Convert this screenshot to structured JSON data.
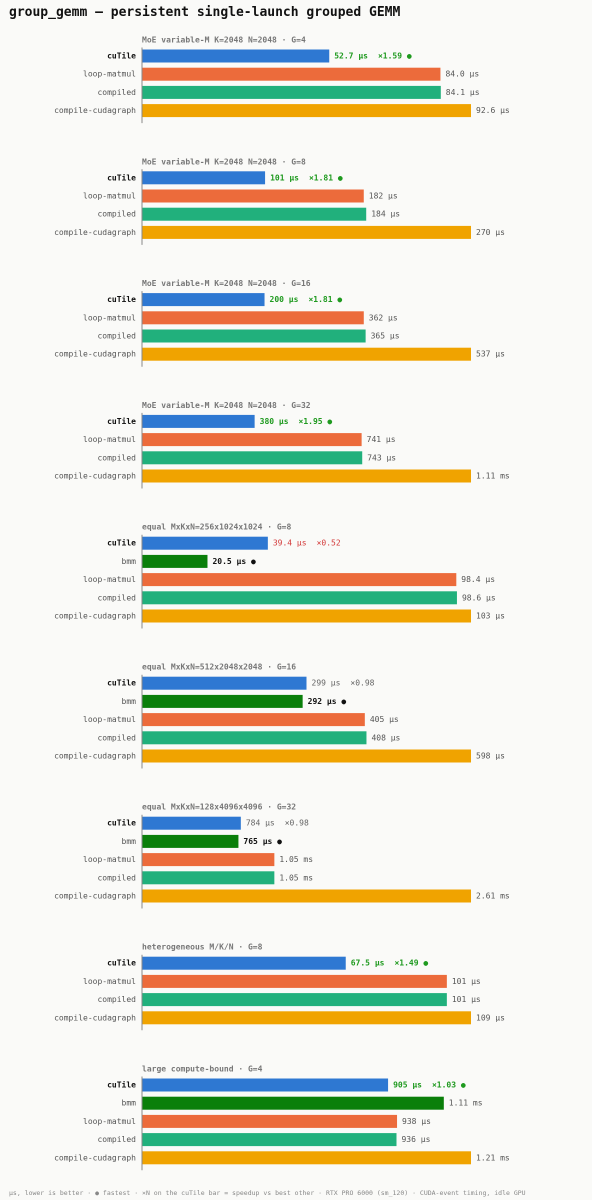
{
  "title": "group_gemm — persistent single-launch grouped GEMM",
  "footnote": "µs, lower is better · ● fastest · ×N on the cuTile bar = speedup vs best other · RTX PRO 6000 (sm_120) · CUDA-event timing, idle GPU",
  "chart_data": [
    {
      "type": "bar",
      "orientation": "horizontal",
      "title": "MoE variable-M  K=2048 N=2048 · G=4",
      "categories": [
        "cuTile",
        "loop-matmul",
        "compiled",
        "compile-cudagraph"
      ],
      "values": [
        52.7,
        84.0,
        84.1,
        92.6
      ],
      "value_labels": [
        "52.7 µs",
        "84.0 µs",
        "84.1 µs",
        "92.6 µs"
      ],
      "colors": [
        "#2e78d2",
        "#ec6b3b",
        "#21b07c",
        "#f0a300"
      ],
      "value_label_colors": [
        "#1f9a1f",
        "#555555",
        "#555555",
        "#555555"
      ],
      "value_label_bold": [
        true,
        false,
        false,
        false
      ],
      "speedup": {
        "label": "×1.59 ●",
        "color": "#1f9a1f"
      }
    },
    {
      "type": "bar",
      "orientation": "horizontal",
      "title": "MoE variable-M  K=2048 N=2048 · G=8",
      "categories": [
        "cuTile",
        "loop-matmul",
        "compiled",
        "compile-cudagraph"
      ],
      "values": [
        101,
        182,
        184,
        270
      ],
      "value_labels": [
        "101 µs",
        "182 µs",
        "184 µs",
        "270 µs"
      ],
      "colors": [
        "#2e78d2",
        "#ec6b3b",
        "#21b07c",
        "#f0a300"
      ],
      "value_label_colors": [
        "#1f9a1f",
        "#555555",
        "#555555",
        "#555555"
      ],
      "value_label_bold": [
        true,
        false,
        false,
        false
      ],
      "speedup": {
        "label": "×1.81 ●",
        "color": "#1f9a1f"
      }
    },
    {
      "type": "bar",
      "orientation": "horizontal",
      "title": "MoE variable-M  K=2048 N=2048 · G=16",
      "categories": [
        "cuTile",
        "loop-matmul",
        "compiled",
        "compile-cudagraph"
      ],
      "values": [
        200,
        362,
        365,
        537
      ],
      "value_labels": [
        "200 µs",
        "362 µs",
        "365 µs",
        "537 µs"
      ],
      "colors": [
        "#2e78d2",
        "#ec6b3b",
        "#21b07c",
        "#f0a300"
      ],
      "value_label_colors": [
        "#1f9a1f",
        "#555555",
        "#555555",
        "#555555"
      ],
      "value_label_bold": [
        true,
        false,
        false,
        false
      ],
      "speedup": {
        "label": "×1.81 ●",
        "color": "#1f9a1f"
      }
    },
    {
      "type": "bar",
      "orientation": "horizontal",
      "title": "MoE variable-M  K=2048 N=2048 · G=32",
      "categories": [
        "cuTile",
        "loop-matmul",
        "compiled",
        "compile-cudagraph"
      ],
      "values": [
        380,
        741,
        743,
        1110
      ],
      "value_labels": [
        "380 µs",
        "741 µs",
        "743 µs",
        "1.11 ms"
      ],
      "colors": [
        "#2e78d2",
        "#ec6b3b",
        "#21b07c",
        "#f0a300"
      ],
      "value_label_colors": [
        "#1f9a1f",
        "#555555",
        "#555555",
        "#555555"
      ],
      "value_label_bold": [
        true,
        false,
        false,
        false
      ],
      "speedup": {
        "label": "×1.95 ●",
        "color": "#1f9a1f"
      }
    },
    {
      "type": "bar",
      "orientation": "horizontal",
      "title": "equal MxKxN=256x1024x1024 · G=8",
      "categories": [
        "cuTile",
        "bmm",
        "loop-matmul",
        "compiled",
        "compile-cudagraph"
      ],
      "values": [
        39.4,
        20.5,
        98.4,
        98.6,
        103
      ],
      "value_labels": [
        "39.4 µs",
        "20.5 µs ●",
        "98.4 µs",
        "98.6 µs",
        "103 µs"
      ],
      "colors": [
        "#2e78d2",
        "#0a7f0a",
        "#ec6b3b",
        "#21b07c",
        "#f0a300"
      ],
      "value_label_colors": [
        "#d33a3a",
        "#111111",
        "#555555",
        "#555555",
        "#555555"
      ],
      "value_label_bold": [
        false,
        true,
        false,
        false,
        false
      ],
      "speedup": {
        "label": "×0.52",
        "color": "#d33a3a"
      }
    },
    {
      "type": "bar",
      "orientation": "horizontal",
      "title": "equal MxKxN=512x2048x2048 · G=16",
      "categories": [
        "cuTile",
        "bmm",
        "loop-matmul",
        "compiled",
        "compile-cudagraph"
      ],
      "values": [
        299,
        292,
        405,
        408,
        598
      ],
      "value_labels": [
        "299 µs",
        "292 µs ●",
        "405 µs",
        "408 µs",
        "598 µs"
      ],
      "colors": [
        "#2e78d2",
        "#0a7f0a",
        "#ec6b3b",
        "#21b07c",
        "#f0a300"
      ],
      "value_label_colors": [
        "#666666",
        "#111111",
        "#555555",
        "#555555",
        "#555555"
      ],
      "value_label_bold": [
        false,
        true,
        false,
        false,
        false
      ],
      "speedup": {
        "label": "×0.98",
        "color": "#666666"
      }
    },
    {
      "type": "bar",
      "orientation": "horizontal",
      "title": "equal MxKxN=128x4096x4096 · G=32",
      "categories": [
        "cuTile",
        "bmm",
        "loop-matmul",
        "compiled",
        "compile-cudagraph"
      ],
      "values": [
        784,
        765,
        1050,
        1050,
        2610
      ],
      "value_labels": [
        "784 µs",
        "765 µs ●",
        "1.05 ms",
        "1.05 ms",
        "2.61 ms"
      ],
      "colors": [
        "#2e78d2",
        "#0a7f0a",
        "#ec6b3b",
        "#21b07c",
        "#f0a300"
      ],
      "value_label_colors": [
        "#666666",
        "#111111",
        "#555555",
        "#555555",
        "#555555"
      ],
      "value_label_bold": [
        false,
        true,
        false,
        false,
        false
      ],
      "speedup": {
        "label": "×0.98",
        "color": "#666666"
      }
    },
    {
      "type": "bar",
      "orientation": "horizontal",
      "title": "heterogeneous M/K/N · G=8",
      "categories": [
        "cuTile",
        "loop-matmul",
        "compiled",
        "compile-cudagraph"
      ],
      "values": [
        67.5,
        101,
        101,
        109
      ],
      "value_labels": [
        "67.5 µs",
        "101 µs",
        "101 µs",
        "109 µs"
      ],
      "colors": [
        "#2e78d2",
        "#ec6b3b",
        "#21b07c",
        "#f0a300"
      ],
      "value_label_colors": [
        "#1f9a1f",
        "#555555",
        "#555555",
        "#555555"
      ],
      "value_label_bold": [
        true,
        false,
        false,
        false
      ],
      "speedup": {
        "label": "×1.49 ●",
        "color": "#1f9a1f"
      }
    },
    {
      "type": "bar",
      "orientation": "horizontal",
      "title": "large compute-bound · G=4",
      "categories": [
        "cuTile",
        "bmm",
        "loop-matmul",
        "compiled",
        "compile-cudagraph"
      ],
      "values": [
        905,
        1110,
        938,
        936,
        1210
      ],
      "value_labels": [
        "905 µs",
        "1.11 ms",
        "938 µs",
        "936 µs",
        "1.21 ms"
      ],
      "colors": [
        "#2e78d2",
        "#0a7f0a",
        "#ec6b3b",
        "#21b07c",
        "#f0a300"
      ],
      "value_label_colors": [
        "#1f9a1f",
        "#555555",
        "#555555",
        "#555555",
        "#555555"
      ],
      "value_label_bold": [
        true,
        false,
        false,
        false,
        false
      ],
      "speedup": {
        "label": "×1.03 ●",
        "color": "#1f9a1f"
      }
    }
  ]
}
